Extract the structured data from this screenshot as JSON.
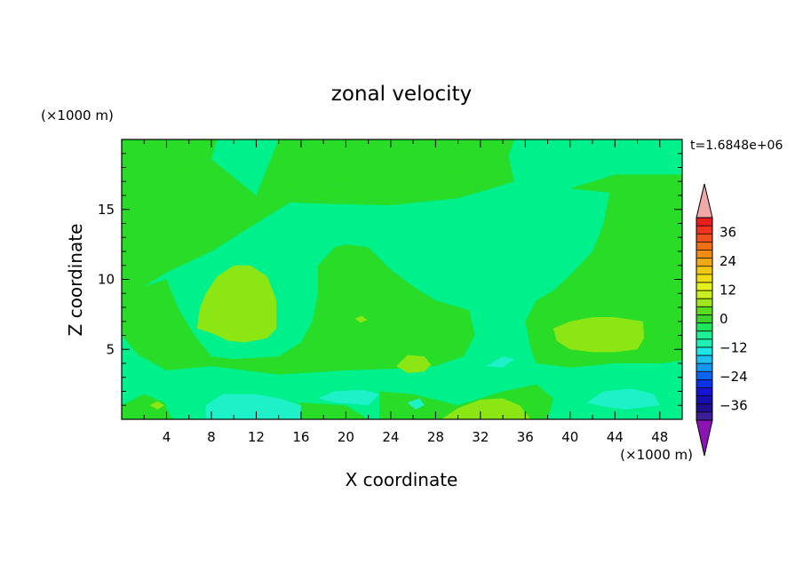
{
  "chart_data": {
    "type": "heatmap",
    "title": "zonal velocity",
    "xlabel": "X coordinate",
    "ylabel": "Z coordinate",
    "x_unit": "(×1000 m)",
    "y_unit": "(×1000 m)",
    "time_label": "t=1.6848e+06",
    "xlim": [
      0,
      50
    ],
    "ylim": [
      0,
      20
    ],
    "x_ticks": [
      4,
      8,
      12,
      16,
      20,
      24,
      28,
      32,
      36,
      40,
      44,
      48
    ],
    "y_ticks": [
      5,
      10,
      15
    ],
    "colorbar": {
      "levels": [
        -42,
        -39,
        -36,
        -33,
        -30,
        -27,
        -24,
        -21,
        -18,
        -15,
        -12,
        -9,
        -6,
        -3,
        0,
        3,
        6,
        9,
        12,
        15,
        18,
        21,
        24,
        27,
        30,
        33,
        36,
        39,
        42
      ],
      "tick_labels": [
        "36",
        "24",
        "12",
        "0",
        "−12",
        "−24",
        "−36"
      ],
      "tick_values": [
        36,
        24,
        12,
        0,
        -12,
        -24,
        -36
      ],
      "colors_low_to_high": [
        "#3d1e96",
        "#1e0f8c",
        "#140fae",
        "#1414d2",
        "#0a32e6",
        "#0a64f0",
        "#1496f0",
        "#1ebef0",
        "#1ee6e6",
        "#1ef0b4",
        "#1ef096",
        "#1ee65a",
        "#3cd22d",
        "#5adc1e",
        "#a0e61e",
        "#c8f01e",
        "#e6f01e",
        "#f0dc14",
        "#f0c814",
        "#f0a814",
        "#f08c14",
        "#f06e14",
        "#f0501e",
        "#f0321e",
        "#e61e1e"
      ],
      "under_color": "#8c14b4",
      "over_color": "#f0a8a8"
    },
    "fill_colors": {
      "m6_m3": "#1ef0c8",
      "m3_0": "#00f08c",
      "0_3": "#28dc28",
      "3_6": "#8ce614"
    },
    "regions": [
      {
        "level": "0_3",
        "polygon": [
          [
            0,
            17
          ],
          [
            4,
            18.1
          ],
          [
            8,
            18.6
          ],
          [
            8.5,
            20
          ],
          [
            0,
            20
          ]
        ]
      },
      {
        "level": "0_3",
        "polygon": [
          [
            14,
            20
          ],
          [
            35,
            20
          ],
          [
            34.5,
            18.8
          ],
          [
            33,
            17.8
          ],
          [
            30,
            17.3
          ],
          [
            26,
            17.6
          ],
          [
            20,
            16.8
          ],
          [
            16,
            16.4
          ],
          [
            12,
            16
          ]
        ]
      },
      {
        "level": "0_3",
        "polygon": [
          [
            0,
            17
          ],
          [
            4,
            18.1
          ],
          [
            8,
            18.6
          ],
          [
            12,
            16
          ],
          [
            16,
            16.4
          ],
          [
            20,
            16.8
          ],
          [
            26,
            17.6
          ],
          [
            30,
            17.3
          ],
          [
            33,
            17.8
          ],
          [
            34.5,
            18.8
          ],
          [
            35,
            17
          ],
          [
            33,
            16.5
          ],
          [
            30,
            15.8
          ],
          [
            24,
            15.3
          ],
          [
            18,
            15.4
          ],
          [
            15,
            15.5
          ],
          [
            12,
            14
          ],
          [
            8,
            12
          ],
          [
            4,
            10.5
          ],
          [
            2,
            9.5
          ],
          [
            0,
            8
          ]
        ]
      },
      {
        "level": "0_3",
        "polygon": [
          [
            50,
            17.5
          ],
          [
            44,
            17.5
          ],
          [
            40,
            16.5
          ],
          [
            43.5,
            16.2
          ],
          [
            43,
            14
          ],
          [
            42,
            12
          ],
          [
            40,
            10.3
          ],
          [
            38.5,
            9.2
          ],
          [
            37,
            8.5
          ],
          [
            36,
            7
          ],
          [
            36.5,
            5
          ],
          [
            37,
            4
          ],
          [
            40,
            3.7
          ],
          [
            44,
            4
          ],
          [
            48,
            4
          ],
          [
            50,
            4.2
          ]
        ]
      },
      {
        "level": "0_3",
        "polygon": [
          [
            0,
            8
          ],
          [
            2,
            9.5
          ],
          [
            4,
            10
          ],
          [
            5,
            8
          ],
          [
            6.5,
            6
          ],
          [
            8,
            4.5
          ],
          [
            10,
            4.3
          ],
          [
            14,
            4.5
          ],
          [
            16,
            5.5
          ],
          [
            17,
            7
          ],
          [
            17.5,
            9
          ],
          [
            17.5,
            11
          ],
          [
            19,
            12.3
          ],
          [
            20,
            12.5
          ],
          [
            22,
            12.3
          ],
          [
            24,
            10.7
          ],
          [
            26,
            9.5
          ],
          [
            28,
            8.5
          ],
          [
            31,
            7.8
          ],
          [
            31.5,
            6
          ],
          [
            30.5,
            4.5
          ],
          [
            28,
            3.8
          ],
          [
            24,
            3.6
          ],
          [
            20,
            3.5
          ],
          [
            14,
            3.2
          ],
          [
            8,
            3.8
          ],
          [
            4,
            3.5
          ],
          [
            1.5,
            4.6
          ],
          [
            0,
            6
          ]
        ]
      },
      {
        "level": "0_3",
        "polygon": [
          [
            23,
            2
          ],
          [
            26,
            1.8
          ],
          [
            28,
            1.4
          ],
          [
            30,
            1
          ],
          [
            32,
            1.5
          ],
          [
            34,
            2
          ],
          [
            37,
            2.5
          ],
          [
            38.5,
            1.5
          ],
          [
            38,
            0
          ],
          [
            23,
            0
          ]
        ]
      },
      {
        "level": "0_3",
        "polygon": [
          [
            0,
            1
          ],
          [
            2,
            1.8
          ],
          [
            3.8,
            1.2
          ],
          [
            4.5,
            0
          ],
          [
            0,
            0
          ]
        ]
      },
      {
        "level": "0_3",
        "polygon": [
          [
            12,
            0
          ],
          [
            16,
            1.2
          ],
          [
            20,
            1
          ],
          [
            22,
            0
          ]
        ]
      },
      {
        "level": "3_6",
        "polygon": [
          [
            6.7,
            6.5
          ],
          [
            7,
            8
          ],
          [
            7.5,
            9
          ],
          [
            8.5,
            10.2
          ],
          [
            10,
            11
          ],
          [
            11.5,
            11
          ],
          [
            13,
            10.2
          ],
          [
            13.8,
            8.5
          ],
          [
            13.8,
            6.5
          ],
          [
            13,
            5.8
          ],
          [
            11,
            5.5
          ],
          [
            9.5,
            5.6
          ],
          [
            8.5,
            6
          ],
          [
            7.5,
            6.3
          ]
        ]
      },
      {
        "level": "3_6",
        "polygon": [
          [
            38.5,
            6.5
          ],
          [
            40,
            7
          ],
          [
            42,
            7.3
          ],
          [
            44,
            7.3
          ],
          [
            46.5,
            7
          ],
          [
            46.6,
            5.8
          ],
          [
            46,
            5
          ],
          [
            44,
            4.8
          ],
          [
            42,
            4.8
          ],
          [
            40,
            5
          ],
          [
            38.8,
            5.6
          ]
        ]
      },
      {
        "level": "3_6",
        "polygon": [
          [
            24.5,
            3.8
          ],
          [
            25.5,
            4.6
          ],
          [
            27,
            4.5
          ],
          [
            27.6,
            3.9
          ],
          [
            27,
            3.4
          ],
          [
            25.5,
            3.3
          ]
        ]
      },
      {
        "level": "3_6",
        "polygon": [
          [
            28.5,
            0
          ],
          [
            30,
            0.8
          ],
          [
            32,
            1.4
          ],
          [
            34,
            1.5
          ],
          [
            35.5,
            1
          ],
          [
            36.5,
            0
          ]
        ]
      },
      {
        "level": "3_6",
        "polygon": [
          [
            2.5,
            1
          ],
          [
            3.2,
            1.3
          ],
          [
            3.8,
            1
          ],
          [
            3.2,
            0.7
          ]
        ]
      },
      {
        "level": "3_6",
        "polygon": [
          [
            20.8,
            7.2
          ],
          [
            21.4,
            7.4
          ],
          [
            21.9,
            7.1
          ],
          [
            21.3,
            6.9
          ]
        ]
      },
      {
        "level": "m6_m3",
        "polygon": [
          [
            7.5,
            1
          ],
          [
            9,
            1.8
          ],
          [
            12,
            1.8
          ],
          [
            14,
            1.5
          ],
          [
            16,
            1
          ],
          [
            16,
            0
          ],
          [
            7.5,
            0
          ]
        ]
      },
      {
        "level": "m6_m3",
        "polygon": [
          [
            17.5,
            1.5
          ],
          [
            19,
            2
          ],
          [
            21.5,
            2.1
          ],
          [
            23,
            1.8
          ],
          [
            22,
            1
          ],
          [
            19,
            1.2
          ]
        ]
      },
      {
        "level": "m6_m3",
        "polygon": [
          [
            25.5,
            1.2
          ],
          [
            26.6,
            1.5
          ],
          [
            27,
            1
          ],
          [
            26.2,
            0.7
          ]
        ]
      },
      {
        "level": "m6_m3",
        "polygon": [
          [
            41.5,
            1.2
          ],
          [
            43,
            2
          ],
          [
            45.5,
            2.2
          ],
          [
            47.5,
            1.8
          ],
          [
            48,
            1
          ],
          [
            45,
            0.7
          ],
          [
            43,
            0.9
          ]
        ]
      },
      {
        "level": "m6_m3",
        "polygon": [
          [
            32.5,
            3.8
          ],
          [
            34,
            4.5
          ],
          [
            35,
            4.3
          ],
          [
            34,
            3.7
          ]
        ]
      }
    ]
  }
}
